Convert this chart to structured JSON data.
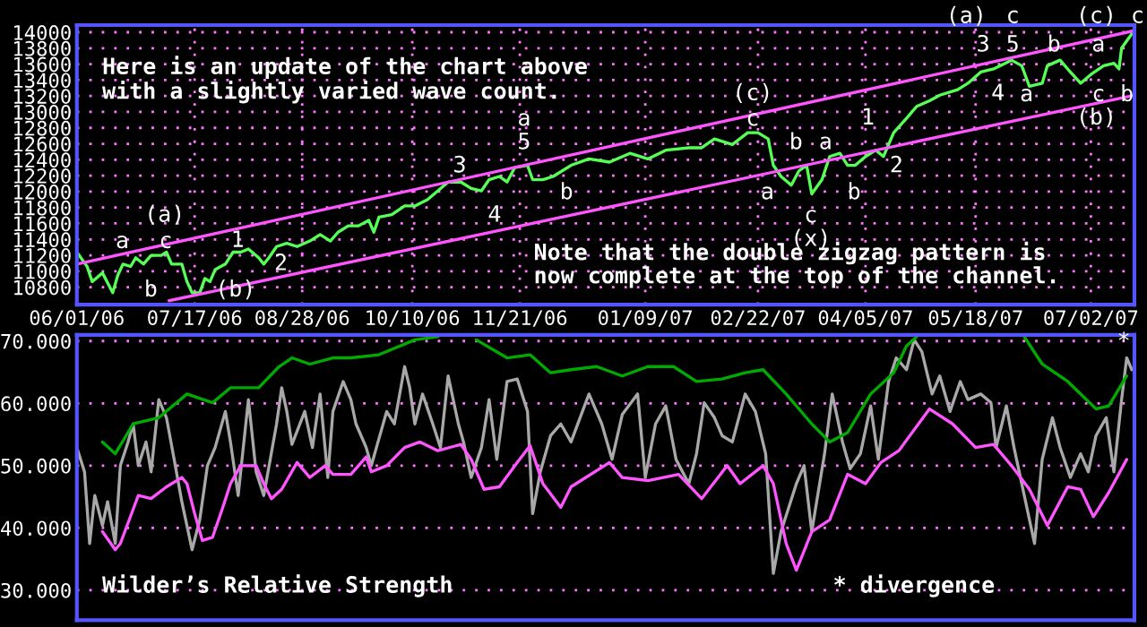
{
  "chart_data": [
    {
      "type": "line",
      "xlim": [
        "2006-06-01",
        "2007-07-19"
      ],
      "ylim": [
        10580,
        14090
      ],
      "xticks": [
        {
          "value": "2006-06-01",
          "label": "06/01/06"
        },
        {
          "value": "2006-07-17",
          "label": "07/17/06"
        },
        {
          "value": "2006-08-28",
          "label": "08/28/06"
        },
        {
          "value": "2006-10-10",
          "label": "10/10/06"
        },
        {
          "value": "2006-11-21",
          "label": "11/21/06"
        },
        {
          "value": "2007-01-09",
          "label": "01/09/07"
        },
        {
          "value": "2007-02-22",
          "label": "02/22/07"
        },
        {
          "value": "2007-04-05",
          "label": "04/05/07"
        },
        {
          "value": "2007-05-18",
          "label": "05/18/07"
        },
        {
          "value": "2007-07-02",
          "label": "07/02/07"
        }
      ],
      "yticks": [
        10800,
        11000,
        11200,
        11400,
        11600,
        11800,
        12000,
        12200,
        12400,
        12600,
        12800,
        13000,
        13200,
        13400,
        13600,
        13800,
        14000
      ],
      "grid": true,
      "marker": "none",
      "line_style": "solid",
      "series": [
        {
          "color": "#55ff55",
          "x": [
            "2006-06-01",
            "2006-06-05",
            "2006-06-07",
            "2006-06-11",
            "2006-06-15",
            "2006-06-17",
            "2006-06-19",
            "2006-06-22",
            "2006-06-24",
            "2006-06-27",
            "2006-06-30",
            "2006-07-04",
            "2006-07-06",
            "2006-07-08",
            "2006-07-12",
            "2006-07-14",
            "2006-07-16",
            "2006-07-19",
            "2006-07-21",
            "2006-07-23",
            "2006-07-25",
            "2006-07-29",
            "2006-08-01",
            "2006-08-04",
            "2006-08-07",
            "2006-08-11",
            "2006-08-13",
            "2006-08-15",
            "2006-08-18",
            "2006-08-22",
            "2006-08-26",
            "2006-08-31",
            "2006-09-04",
            "2006-09-08",
            "2006-09-11",
            "2006-09-15",
            "2006-09-19",
            "2006-09-23",
            "2006-09-25",
            "2006-09-27",
            "2006-10-02",
            "2006-10-07",
            "2006-10-11",
            "2006-10-16",
            "2006-10-20",
            "2006-10-24",
            "2006-10-29",
            "2006-11-02",
            "2006-11-06",
            "2006-11-09",
            "2006-11-13",
            "2006-11-16",
            "2006-11-19",
            "2006-11-24",
            "2006-11-26",
            "2006-11-30",
            "2006-12-04",
            "2006-12-11",
            "2006-12-18",
            "2006-12-26",
            "2007-01-03",
            "2007-01-10",
            "2007-01-17",
            "2007-01-26",
            "2007-01-31",
            "2007-02-05",
            "2007-02-12",
            "2007-02-18",
            "2007-02-22",
            "2007-02-26",
            "2007-02-28",
            "2007-03-03",
            "2007-03-07",
            "2007-03-10",
            "2007-03-13",
            "2007-03-15",
            "2007-03-19",
            "2007-03-22",
            "2007-03-26",
            "2007-03-29",
            "2007-04-01",
            "2007-04-05",
            "2007-04-09",
            "2007-04-12",
            "2007-04-16",
            "2007-04-21",
            "2007-04-25",
            "2007-04-30",
            "2007-05-04",
            "2007-05-11",
            "2007-05-15",
            "2007-05-20",
            "2007-05-25",
            "2007-06-01",
            "2007-06-05",
            "2007-06-08",
            "2007-06-13",
            "2007-06-15",
            "2007-06-20",
            "2007-06-24",
            "2007-06-28",
            "2007-07-02",
            "2007-07-07",
            "2007-07-11",
            "2007-07-13",
            "2007-07-14",
            "2007-07-18"
          ],
          "values": [
            11240,
            11060,
            10870,
            10980,
            10730,
            10950,
            11090,
            11060,
            11170,
            11090,
            11200,
            11200,
            11240,
            11090,
            11090,
            10870,
            10730,
            10730,
            10910,
            10870,
            11020,
            11090,
            11240,
            11240,
            11280,
            11170,
            11090,
            11170,
            11310,
            11350,
            11310,
            11380,
            11460,
            11380,
            11490,
            11570,
            11570,
            11640,
            11490,
            11680,
            11710,
            11820,
            11820,
            11900,
            12010,
            12120,
            12120,
            12040,
            12010,
            12150,
            12190,
            12120,
            12300,
            12330,
            12150,
            12150,
            12190,
            12330,
            12410,
            12370,
            12480,
            12410,
            12520,
            12550,
            12550,
            12660,
            12590,
            12740,
            12740,
            12660,
            12330,
            12190,
            12080,
            12260,
            12330,
            11970,
            12150,
            12440,
            12480,
            12330,
            12330,
            12440,
            12520,
            12440,
            12740,
            12920,
            13070,
            13140,
            13210,
            13280,
            13360,
            13500,
            13540,
            13650,
            13580,
            13320,
            13360,
            13580,
            13650,
            13500,
            13360,
            13470,
            13580,
            13610,
            13540,
            13800,
            13980
          ]
        },
        {
          "color": "#ff55ff",
          "x": [
            "2006-06-01",
            "2007-07-19"
          ],
          "values": [
            11090,
            14020
          ]
        },
        {
          "color": "#ff55ff",
          "x": [
            "2006-07-07",
            "2007-07-19"
          ],
          "values": [
            10630,
            13210
          ]
        }
      ],
      "annotations": [
        "Here is an update of the chart above\nwith a slightly varied wave count.",
        "Note that the double zigzag pattern is\nnow complete at the top of the channel.",
        "(a)",
        "a",
        "c",
        "b",
        "1",
        "(b)",
        "2",
        "3",
        "a",
        "5",
        "4",
        "b",
        "(c)",
        "c",
        "b",
        "a",
        "a",
        "b",
        "c",
        "(x)",
        "1",
        "2",
        "(a)",
        "c",
        "3",
        "5",
        "b",
        "a",
        "(c)",
        "c",
        "4",
        "a",
        "c",
        "b",
        "(b)"
      ]
    },
    {
      "type": "line",
      "xlim": [
        "2006-06-01",
        "2007-07-19"
      ],
      "ylim": [
        25.2,
        71
      ],
      "tick_labels": "y",
      "yticks": [
        {
          "value": 30,
          "label": "30.000"
        },
        {
          "value": 40,
          "label": "40.000"
        },
        {
          "value": 50,
          "label": "50.000"
        },
        {
          "value": 60,
          "label": "60.000"
        },
        {
          "value": 70,
          "label": "70.000"
        }
      ],
      "grid": "y",
      "marker": "none",
      "line_style": "solid",
      "series": [
        {
          "color": "#a8a8a8",
          "x": [
            "2006-06-01",
            "2006-06-04",
            "2006-06-06",
            "2006-06-08",
            "2006-06-11",
            "2006-06-13",
            "2006-06-16",
            "2006-06-18",
            "2006-06-21",
            "2006-06-23",
            "2006-06-25",
            "2006-06-28",
            "2006-06-30",
            "2006-07-03",
            "2006-07-06",
            "2006-07-09",
            "2006-07-12",
            "2006-07-16",
            "2006-07-19",
            "2006-07-22",
            "2006-07-25",
            "2006-07-29",
            "2006-07-31",
            "2006-08-03",
            "2006-08-07",
            "2006-08-10",
            "2006-08-13",
            "2006-08-18",
            "2006-08-20",
            "2006-08-22",
            "2006-08-24",
            "2006-08-29",
            "2006-09-01",
            "2006-09-04",
            "2006-09-07",
            "2006-09-09",
            "2006-09-13",
            "2006-09-16",
            "2006-09-18",
            "2006-09-22",
            "2006-09-24",
            "2006-09-26",
            "2006-09-30",
            "2006-10-03",
            "2006-10-07",
            "2006-10-09",
            "2006-10-11",
            "2006-10-14",
            "2006-10-18",
            "2006-10-21",
            "2006-10-24",
            "2006-10-28",
            "2006-10-30",
            "2006-11-02",
            "2006-11-06",
            "2006-11-09",
            "2006-11-12",
            "2006-11-16",
            "2006-11-20",
            "2006-11-24",
            "2006-11-26",
            "2006-11-29",
            "2006-12-03",
            "2006-12-07",
            "2006-12-11",
            "2006-12-18",
            "2006-12-23",
            "2006-12-27",
            "2006-12-31",
            "2007-01-06",
            "2007-01-09",
            "2007-01-13",
            "2007-01-17",
            "2007-01-21",
            "2007-01-26",
            "2007-01-29",
            "2007-02-01",
            "2007-02-05",
            "2007-02-08",
            "2007-02-12",
            "2007-02-17",
            "2007-02-21",
            "2007-02-25",
            "2007-02-28",
            "2007-03-03",
            "2007-03-09",
            "2007-03-12",
            "2007-03-15",
            "2007-03-20",
            "2007-03-23",
            "2007-03-27",
            "2007-03-30",
            "2007-04-03",
            "2007-04-07",
            "2007-04-10",
            "2007-04-14",
            "2007-04-17",
            "2007-04-21",
            "2007-04-24",
            "2007-04-27",
            "2007-05-01",
            "2007-05-04",
            "2007-05-08",
            "2007-05-12",
            "2007-05-15",
            "2007-05-20",
            "2007-05-24",
            "2007-05-26",
            "2007-05-30",
            "2007-06-02",
            "2007-06-06",
            "2007-06-10",
            "2007-06-13",
            "2007-06-17",
            "2007-06-20",
            "2007-06-24",
            "2007-06-28",
            "2007-07-01",
            "2007-07-04",
            "2007-07-08",
            "2007-07-11",
            "2007-07-14",
            "2007-07-16",
            "2007-07-18"
          ],
          "values": [
            52.9,
            49.0,
            37.5,
            45.2,
            40.4,
            44.2,
            37.5,
            50.0,
            53.8,
            56.7,
            50.0,
            53.8,
            49.0,
            60.6,
            57.7,
            51.0,
            44.2,
            36.5,
            41.3,
            50.0,
            52.9,
            58.7,
            53.8,
            45.2,
            60.6,
            49.0,
            45.2,
            56.7,
            62.5,
            58.7,
            53.4,
            58.7,
            52.9,
            61.5,
            48.1,
            58.7,
            63.5,
            60.6,
            56.7,
            52.9,
            50.0,
            52.9,
            58.7,
            56.7,
            65.9,
            62.5,
            56.7,
            61.5,
            56.7,
            52.9,
            64.4,
            56.7,
            53.8,
            48.1,
            52.9,
            60.6,
            51.0,
            63.5,
            63.9,
            58.7,
            42.3,
            49.0,
            54.8,
            56.7,
            53.8,
            61.5,
            56.7,
            51.0,
            58.2,
            61.5,
            48.1,
            56.7,
            59.6,
            51.0,
            47.1,
            51.9,
            60.1,
            57.7,
            54.8,
            53.8,
            61.5,
            58.7,
            51.9,
            32.7,
            39.4,
            47.1,
            50.0,
            39.4,
            51.9,
            61.5,
            53.8,
            49.5,
            51.9,
            59.6,
            51.0,
            63.5,
            67.3,
            65.4,
            70.2,
            68.3,
            61.5,
            64.4,
            58.7,
            63.5,
            60.6,
            61.5,
            60.1,
            52.9,
            59.6,
            52.9,
            45.2,
            37.5,
            51.0,
            57.7,
            52.9,
            48.1,
            51.9,
            49.0,
            54.8,
            57.7,
            49.0,
            60.6,
            67.3,
            65.4
          ]
        },
        {
          "color": "#ff55ff",
          "x": [
            "2006-06-11",
            "2006-06-16",
            "2006-06-18",
            "2006-06-25",
            "2006-06-30",
            "2006-07-06",
            "2006-07-12",
            "2006-07-14",
            "2006-07-17",
            "2006-07-20",
            "2006-07-24",
            "2006-07-28",
            "2006-07-31",
            "2006-08-04",
            "2006-08-10",
            "2006-08-13",
            "2006-08-16",
            "2006-08-20",
            "2006-08-26",
            "2006-08-31",
            "2006-09-06",
            "2006-09-09",
            "2006-09-16",
            "2006-09-22",
            "2006-09-24",
            "2006-09-30",
            "2006-10-07",
            "2006-10-13",
            "2006-10-20",
            "2006-10-29",
            "2006-11-02",
            "2006-11-07",
            "2006-11-13",
            "2006-11-20",
            "2006-11-25",
            "2006-11-30",
            "2006-12-07",
            "2006-12-11",
            "2006-12-26",
            "2006-12-31",
            "2007-01-10",
            "2007-01-22",
            "2007-01-31",
            "2007-02-10",
            "2007-02-15",
            "2007-02-24",
            "2007-02-28",
            "2007-03-05",
            "2007-03-09",
            "2007-03-15",
            "2007-03-22",
            "2007-03-29",
            "2007-04-05",
            "2007-04-11",
            "2007-04-18",
            "2007-04-30",
            "2007-05-09",
            "2007-05-18",
            "2007-05-25",
            "2007-06-01",
            "2007-06-08",
            "2007-06-15",
            "2007-06-23",
            "2007-06-28",
            "2007-07-03",
            "2007-07-09",
            "2007-07-16"
          ],
          "values": [
            39.4,
            36.5,
            37.5,
            45.2,
            44.7,
            46.6,
            48.1,
            47.1,
            42.3,
            38.0,
            38.5,
            43.3,
            47.1,
            50.0,
            50.0,
            47.1,
            44.7,
            46.2,
            50.5,
            48.1,
            50.0,
            48.6,
            48.6,
            51.4,
            49.0,
            50.0,
            52.9,
            53.8,
            52.4,
            53.4,
            51.0,
            46.2,
            46.6,
            50.5,
            53.2,
            47.1,
            43.3,
            46.6,
            50.5,
            48.1,
            47.6,
            48.6,
            44.7,
            50.0,
            47.1,
            50.0,
            47.1,
            37.5,
            33.2,
            39.4,
            41.3,
            48.6,
            47.1,
            50.5,
            52.4,
            59.1,
            56.7,
            52.9,
            53.4,
            50.0,
            46.2,
            40.4,
            46.6,
            46.2,
            41.8,
            45.7,
            51.0
          ]
        },
        {
          "color": "#00aa00",
          "x": [
            "2006-06-11",
            "2006-06-16",
            "2006-06-23",
            "2006-07-03",
            "2006-07-14",
            "2006-07-24",
            "2006-07-31",
            "2006-08-11",
            "2006-08-19",
            "2006-08-24",
            "2006-08-31",
            "2006-09-09",
            "2006-09-16",
            "2006-09-27",
            "2006-10-11",
            "2006-10-20",
            "2006-10-24",
            "2006-11-04",
            "2006-11-16",
            "2006-11-25",
            "2006-12-03",
            "2006-12-11",
            "2006-12-21",
            "2006-12-31",
            "2007-01-10",
            "2007-01-20",
            "2007-01-29",
            "2007-02-08",
            "2007-02-17",
            "2007-02-24",
            "2007-03-05",
            "2007-03-15",
            "2007-03-22",
            "2007-03-29",
            "2007-04-07",
            "2007-04-16",
            "2007-04-21",
            "2007-04-25",
            "2007-04-27",
            "2007-06-06",
            "2007-06-13",
            "2007-06-23",
            "2007-07-04",
            "2007-07-09",
            "2007-07-16"
          ],
          "values": [
            53.8,
            51.9,
            56.7,
            57.7,
            61.5,
            60.1,
            62.5,
            62.5,
            65.9,
            67.3,
            66.3,
            67.3,
            67.3,
            67.8,
            70.2,
            70.7,
            null,
            70.2,
            67.3,
            67.8,
            64.9,
            65.4,
            65.9,
            64.4,
            65.9,
            65.9,
            63.5,
            63.9,
            64.9,
            65.4,
            61.5,
            56.7,
            53.8,
            55.3,
            61.5,
            64.9,
            69.2,
            70.7,
            null,
            70.7,
            66.3,
            63.5,
            59.1,
            59.6,
            64.4
          ]
        }
      ],
      "annotations": [
        "Wilder’s Relative Strength",
        "* divergence",
        "*"
      ]
    }
  ]
}
